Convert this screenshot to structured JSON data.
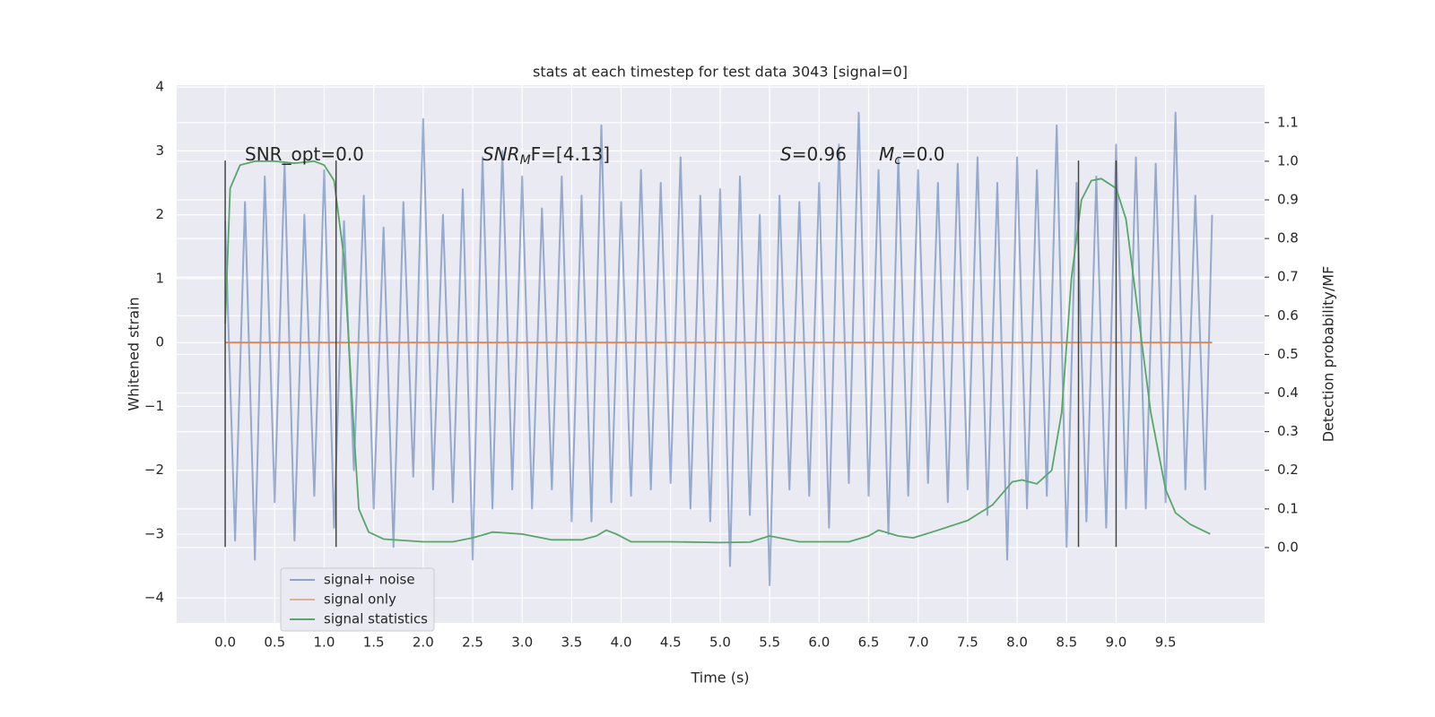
{
  "chart_data": {
    "type": "line",
    "title": "stats at each timestep for test data 3043 [signal=0]",
    "xlabel": "Time (s)",
    "ylabel": "Whitened strain",
    "y2label": "Detection probability/MF",
    "xlim": [
      -0.49,
      10.5
    ],
    "ylim": [
      -4.39,
      4.03
    ],
    "y2lim": [
      -0.195,
      1.197
    ],
    "xticks": [
      {
        "value": 0,
        "label": "0.0"
      },
      0.5,
      {
        "value": 1,
        "label": "1.0"
      },
      1.5,
      {
        "value": 2,
        "label": "2.0"
      },
      2.5,
      {
        "value": 3,
        "label": "3.0"
      },
      3.5,
      {
        "value": 4,
        "label": "4.0"
      },
      4.5,
      {
        "value": 5,
        "label": "5.0"
      },
      5.5,
      {
        "value": 6,
        "label": "6.0"
      },
      6.5,
      {
        "value": 7,
        "label": "7.0"
      },
      7.5,
      {
        "value": 8,
        "label": "8.0"
      },
      8.5,
      {
        "value": 9,
        "label": "9.0"
      },
      9.5
    ],
    "yticks": [
      {
        "value": -4,
        "label": "−4"
      },
      {
        "value": -3,
        "label": "−3"
      },
      {
        "value": -2,
        "label": "−2"
      },
      {
        "value": -1,
        "label": "−1"
      },
      0,
      1,
      2,
      3,
      4
    ],
    "y2ticks": [
      {
        "value": 0,
        "label": "0.0"
      },
      0.1,
      0.2,
      0.3,
      0.4,
      0.5,
      0.6,
      0.7,
      0.8,
      0.9,
      {
        "value": 1,
        "label": "1.0"
      },
      1.1
    ],
    "grid": true,
    "legend": "lower left",
    "series": [
      {
        "name": "signal+ noise",
        "color": "#4c72b0",
        "x": [
          0.0,
          0.1,
          0.2,
          0.3,
          0.4,
          0.5,
          0.6,
          0.7,
          0.8,
          0.9,
          1.0,
          1.1,
          1.2,
          1.3,
          1.4,
          1.5,
          1.6,
          1.7,
          1.8,
          1.9,
          2.0,
          2.1,
          2.2,
          2.3,
          2.4,
          2.5,
          2.6,
          2.7,
          2.8,
          2.9,
          3.0,
          3.1,
          3.2,
          3.3,
          3.4,
          3.5,
          3.6,
          3.7,
          3.8,
          3.9,
          4.0,
          4.1,
          4.2,
          4.3,
          4.4,
          4.5,
          4.6,
          4.7,
          4.8,
          4.9,
          5.0,
          5.1,
          5.2,
          5.3,
          5.4,
          5.5,
          5.6,
          5.7,
          5.8,
          5.9,
          6.0,
          6.1,
          6.2,
          6.3,
          6.4,
          6.5,
          6.6,
          6.7,
          6.8,
          6.9,
          7.0,
          7.1,
          7.2,
          7.3,
          7.4,
          7.5,
          7.6,
          7.7,
          7.8,
          7.9,
          8.0,
          8.1,
          8.2,
          8.3,
          8.4,
          8.5,
          8.6,
          8.7,
          8.8,
          8.9,
          9.0,
          9.1,
          9.2,
          9.3,
          9.4,
          9.5,
          9.6,
          9.7,
          9.8,
          9.9,
          9.97
        ],
        "values": [
          1.9,
          -3.1,
          2.2,
          -3.4,
          2.6,
          -2.5,
          2.8,
          -3.1,
          2.0,
          -2.4,
          2.7,
          -2.9,
          1.9,
          -2.0,
          2.3,
          -2.6,
          1.8,
          -3.2,
          2.2,
          -2.1,
          3.5,
          -2.3,
          2.0,
          -2.5,
          2.4,
          -3.4,
          2.9,
          -2.6,
          3.0,
          -2.3,
          2.6,
          -2.6,
          2.1,
          -2.3,
          2.6,
          -2.8,
          2.3,
          -2.8,
          3.4,
          -2.5,
          2.2,
          -2.4,
          2.7,
          -2.3,
          2.5,
          -2.2,
          2.9,
          -2.6,
          2.3,
          -2.8,
          2.4,
          -3.5,
          2.6,
          -2.7,
          2.0,
          -3.8,
          2.3,
          -2.3,
          2.2,
          -2.4,
          2.5,
          -2.9,
          3.1,
          -2.2,
          3.6,
          -2.4,
          2.7,
          -3.0,
          2.9,
          -2.4,
          2.7,
          -2.2,
          2.5,
          -2.5,
          2.8,
          -2.3,
          2.9,
          -2.7,
          2.5,
          -3.4,
          2.9,
          -2.6,
          2.7,
          -2.4,
          3.4,
          -3.2,
          2.5,
          -2.8,
          2.6,
          -2.9,
          3.1,
          -2.6,
          2.9,
          -2.6,
          2.8,
          -2.5,
          3.6,
          -2.3,
          2.3,
          -2.3,
          2.0
        ]
      },
      {
        "name": "signal only",
        "color": "#dd8452",
        "x": [
          0,
          9.97
        ],
        "values": [
          0,
          0
        ]
      },
      {
        "name": "signal statistics",
        "color": "#55a868",
        "axis": "y2",
        "x": [
          0,
          0.05,
          0.15,
          0.3,
          0.5,
          0.7,
          0.9,
          1.0,
          1.1,
          1.2,
          1.3,
          1.35,
          1.45,
          1.6,
          2.0,
          2.3,
          2.5,
          2.7,
          3.0,
          3.3,
          3.6,
          3.75,
          3.85,
          3.95,
          4.1,
          4.5,
          5.0,
          5.3,
          5.5,
          5.8,
          6.3,
          6.5,
          6.6,
          6.8,
          6.95,
          7.2,
          7.5,
          7.75,
          7.95,
          8.05,
          8.2,
          8.35,
          8.45,
          8.55,
          8.65,
          8.75,
          8.85,
          9.0,
          9.1,
          9.2,
          9.35,
          9.5,
          9.6,
          9.75,
          9.95
        ],
        "values": [
          0.58,
          0.93,
          0.99,
          1.0,
          1.0,
          0.995,
          1.0,
          0.99,
          0.95,
          0.75,
          0.3,
          0.1,
          0.04,
          0.022,
          0.015,
          0.015,
          0.025,
          0.04,
          0.035,
          0.02,
          0.02,
          0.03,
          0.045,
          0.035,
          0.015,
          0.015,
          0.013,
          0.014,
          0.03,
          0.015,
          0.015,
          0.03,
          0.045,
          0.03,
          0.025,
          0.045,
          0.07,
          0.11,
          0.17,
          0.175,
          0.165,
          0.2,
          0.35,
          0.7,
          0.9,
          0.95,
          0.955,
          0.93,
          0.85,
          0.65,
          0.35,
          0.15,
          0.09,
          0.06,
          0.035
        ]
      }
    ],
    "vlines": {
      "x": [
        0,
        1.12,
        8.62,
        9.0
      ],
      "ymin": -3.2,
      "ymax": 2.85,
      "color": "#444444"
    },
    "annotations": [
      [
        {
          "text": "SNR_opt=0.0"
        }
      ],
      [
        {
          "text": "SNR",
          "italic": true
        },
        {
          "text": "M",
          "italic": true,
          "sub": true
        },
        {
          "text": "F=[4.13]"
        }
      ],
      [
        {
          "text": "S",
          "italic": true
        },
        {
          "text": "=0.96"
        }
      ],
      [
        {
          "text": "M",
          "italic": true
        },
        {
          "text": "c",
          "italic": true,
          "sub": true
        },
        {
          "text": "=0.0"
        }
      ]
    ]
  }
}
